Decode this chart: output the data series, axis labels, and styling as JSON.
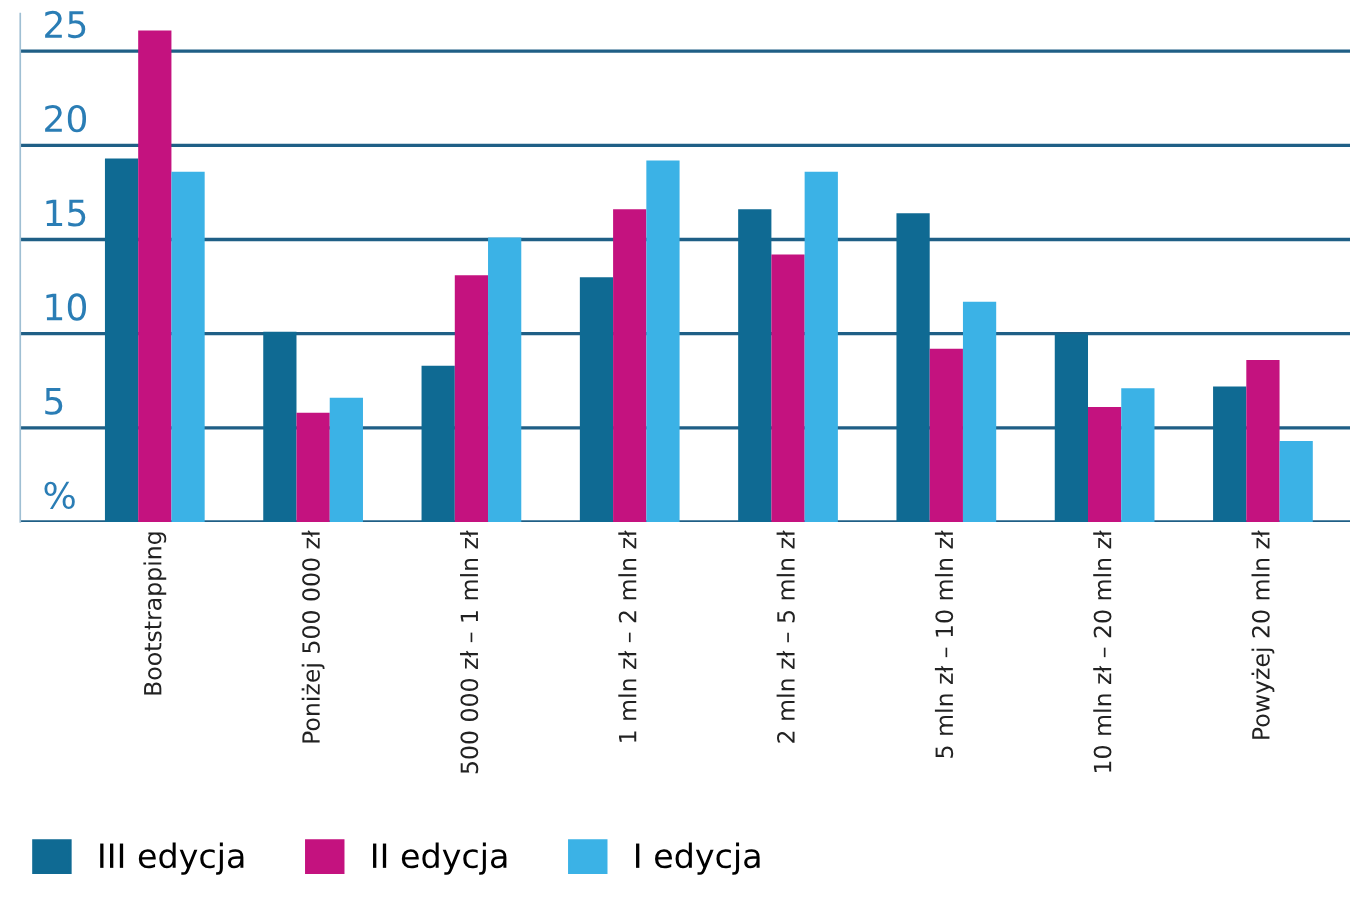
{
  "chart_data": {
    "type": "bar",
    "categories": [
      "Bootstrapping",
      "Poniżej 500 000 zł",
      "500 000 zł – 1 mln zł",
      "1 mln zł – 2 mln zł",
      "2 mln zł – 5 mln zł",
      "5 mln zł – 10 mln zł",
      "10 mln zł – 20 mln zł",
      "Powyżej 20 mln zł"
    ],
    "series": [
      {
        "name": "III edycja",
        "color": "#0f6a93",
        "values": [
          19.3,
          10.1,
          8.3,
          13.0,
          16.6,
          16.4,
          10.0,
          7.2
        ]
      },
      {
        "name": "II edycja",
        "color": "#c4127f",
        "values": [
          26.1,
          5.8,
          13.1,
          16.6,
          14.2,
          9.2,
          6.1,
          8.6
        ]
      },
      {
        "name": "I edycja",
        "color": "#3bb2e6",
        "values": [
          18.6,
          6.6,
          15.1,
          19.2,
          18.6,
          11.7,
          7.1,
          4.3
        ]
      }
    ],
    "ylim": [
      0,
      27
    ],
    "yticks": [
      {
        "value": 0,
        "label": "%"
      },
      5,
      10,
      15,
      20,
      25
    ],
    "grid": "y",
    "legend": "bottom left"
  }
}
